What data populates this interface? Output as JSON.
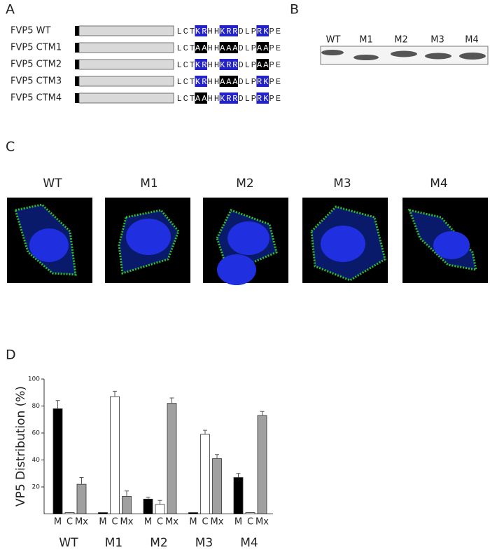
{
  "panel_labels": [
    "A",
    "B",
    "C",
    "D"
  ],
  "panel_a": {
    "rows": [
      {
        "label": "FVP5 WT",
        "segments": [
          "LCT",
          "KR",
          "HH",
          "KRR",
          "DLP",
          "RK",
          "PE"
        ],
        "highlights": [
          null,
          "#2323c8",
          null,
          "#2323c8",
          null,
          "#2323c8",
          null
        ]
      },
      {
        "label": "FVP5 CTM1",
        "segments": [
          "LCT",
          "AA",
          "HH",
          "AAA",
          "DLP",
          "AA",
          "PE"
        ],
        "highlights": [
          null,
          "#000000",
          null,
          "#000000",
          null,
          "#000000",
          null
        ]
      },
      {
        "label": "FVP5 CTM2",
        "segments": [
          "LCT",
          "KR",
          "HH",
          "KRR",
          "DLP",
          "AA",
          "PE"
        ],
        "highlights": [
          null,
          "#2323c8",
          null,
          "#2323c8",
          null,
          "#000000",
          null
        ]
      },
      {
        "label": "FVP5 CTM3",
        "segments": [
          "LCT",
          "KR",
          "HH",
          "AAA",
          "DLP",
          "RK",
          "PE"
        ],
        "highlights": [
          null,
          "#2323c8",
          null,
          "#000000",
          null,
          "#2323c8",
          null
        ]
      },
      {
        "label": "FVP5 CTM4",
        "segments": [
          "LCT",
          "AA",
          "HH",
          "KRR",
          "DLP",
          "RK",
          "PE"
        ],
        "highlights": [
          null,
          "#000000",
          null,
          "#2323c8",
          null,
          "#2323c8",
          null
        ]
      }
    ]
  },
  "panel_b": {
    "lanes": [
      "WT",
      "M1",
      "M2",
      "M3",
      "M4"
    ]
  },
  "panel_c": {
    "labels": [
      "WT",
      "M1",
      "M2",
      "M3",
      "M4"
    ]
  },
  "chart_data": {
    "type": "bar",
    "ylabel": "VP5 Distribution (%)",
    "categories": [
      "WT",
      "M1",
      "M2",
      "M3",
      "M4"
    ],
    "series": [
      {
        "name": "M",
        "color": "#000000",
        "values": [
          78,
          1,
          11,
          1,
          27
        ],
        "errors": [
          6,
          0,
          1.5,
          0,
          3
        ]
      },
      {
        "name": "C",
        "color": "#ffffff",
        "values": [
          1,
          87,
          7,
          59,
          1
        ],
        "errors": [
          0,
          4,
          3,
          3,
          0
        ]
      },
      {
        "name": "Mx",
        "color": "#a0a0a0",
        "values": [
          22,
          13,
          82,
          41,
          73
        ],
        "errors": [
          5,
          4,
          4,
          3,
          3
        ]
      }
    ],
    "ylim": [
      0,
      100
    ],
    "yticks": [
      20,
      40,
      60,
      80,
      100
    ]
  }
}
